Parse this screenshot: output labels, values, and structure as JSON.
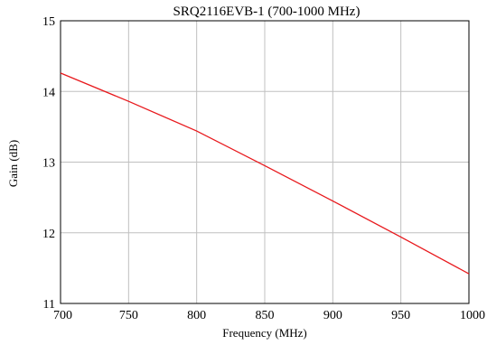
{
  "chart_data": {
    "type": "line",
    "title": "SRQ2116EVB-1 (700-1000 MHz)",
    "xlabel": "Frequency (MHz)",
    "ylabel": "Gain (dB)",
    "xlim": [
      700,
      1000
    ],
    "ylim": [
      11,
      15
    ],
    "xticks": [
      700,
      750,
      800,
      850,
      900,
      950,
      1000
    ],
    "yticks": [
      11,
      12,
      13,
      14,
      15
    ],
    "grid": true,
    "series": [
      {
        "color": "#e8191d",
        "x": [
          700,
          750,
          800,
          850,
          900,
          950,
          1000
        ],
        "y": [
          14.26,
          13.86,
          13.44,
          12.95,
          12.45,
          11.94,
          11.42
        ]
      }
    ]
  }
}
